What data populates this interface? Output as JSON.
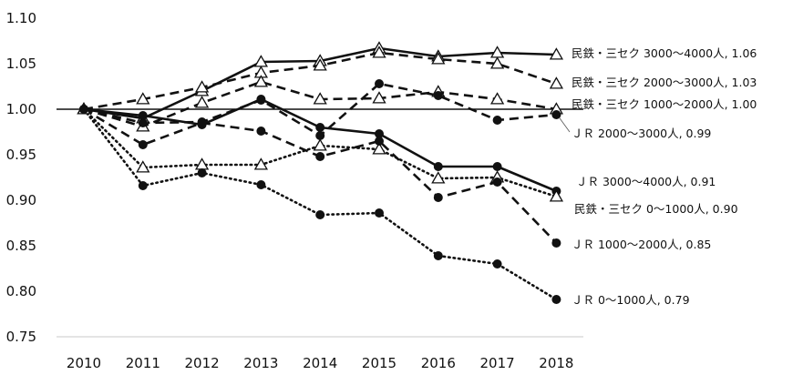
{
  "chart_data": {
    "type": "line",
    "categories": [
      "2010",
      "2011",
      "2012",
      "2013",
      "2014",
      "2015",
      "2016",
      "2017",
      "2018"
    ],
    "ylim": [
      0.75,
      1.1
    ],
    "yticks": [
      "0.75",
      "0.80",
      "0.85",
      "0.90",
      "0.95",
      "1.00",
      "1.05",
      "1.10"
    ],
    "reference_line": 1.0,
    "grid": false,
    "series": [
      {
        "label": "民鉄・三セク 3000～4000人, 1.06",
        "marker": "triangle",
        "line": "solid",
        "values": [
          1.0,
          0.99,
          1.02,
          1.052,
          1.053,
          1.067,
          1.058,
          1.062,
          1.06
        ]
      },
      {
        "label": "民鉄・三セク 2000～3000人, 1.03",
        "marker": "triangle",
        "line": "dashed",
        "values": [
          1.0,
          1.011,
          1.024,
          1.04,
          1.048,
          1.062,
          1.055,
          1.05,
          1.028
        ]
      },
      {
        "label": "民鉄・三セク 1000～2000人, 1.00",
        "marker": "triangle",
        "line": "dashed",
        "values": [
          1.0,
          0.981,
          1.007,
          1.03,
          1.011,
          1.012,
          1.019,
          1.011,
          1.0
        ]
      },
      {
        "label": "ＪＲ 2000～3000人, 0.99",
        "marker": "circle",
        "line": "dashed",
        "values": [
          1.0,
          0.985,
          0.986,
          1.01,
          0.971,
          1.028,
          1.015,
          0.988,
          0.994
        ]
      },
      {
        "label": "ＪＲ 3000～4000人, 0.91",
        "marker": "circle",
        "line": "solid",
        "values": [
          1.0,
          0.993,
          0.983,
          1.011,
          0.98,
          0.973,
          0.937,
          0.937,
          0.91
        ]
      },
      {
        "label": "民鉄・三セク 0～1000人, 0.90",
        "marker": "triangle",
        "line": "dotted",
        "values": [
          1.0,
          0.936,
          0.939,
          0.939,
          0.96,
          0.956,
          0.924,
          0.925,
          0.904
        ]
      },
      {
        "label": "ＪＲ 1000～2000人, 0.85",
        "marker": "circle",
        "line": "dashed",
        "values": [
          1.0,
          0.961,
          0.985,
          0.976,
          0.948,
          0.965,
          0.903,
          0.92,
          0.853
        ]
      },
      {
        "label": "ＪＲ 0～1000人, 0.79",
        "marker": "circle",
        "line": "dotted",
        "values": [
          1.0,
          0.916,
          0.93,
          0.917,
          0.884,
          0.886,
          0.839,
          0.83,
          0.791
        ]
      }
    ]
  }
}
